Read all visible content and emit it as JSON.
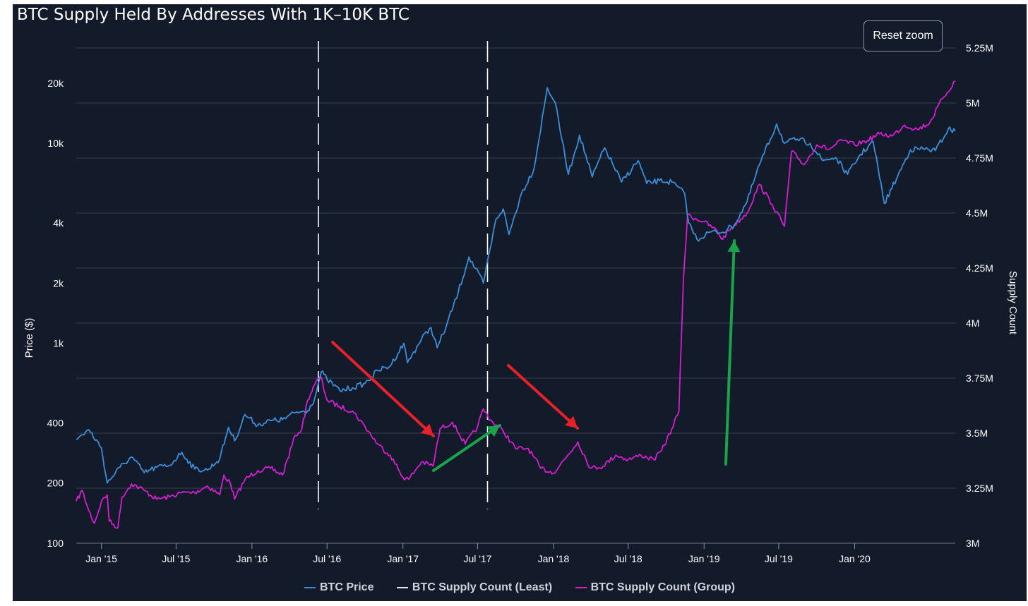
{
  "title": "BTC Supply Held By Addresses With 1K–10K BTC",
  "reset_zoom_label": "Reset zoom",
  "colors": {
    "background": "#131a2a",
    "price": "#3b8fd9",
    "supply_least": "#e8e8e8",
    "supply_group": "#d41ed0",
    "grid": "#3a4253",
    "red_arrow": "#e8202a",
    "green_arrow": "#1aa34a"
  },
  "chart_data": {
    "type": "line",
    "title": "BTC Supply Held By Addresses With 1K–10K BTC",
    "x_ticks": [
      "Jan '15",
      "Jul '15",
      "Jan '16",
      "Jul '16",
      "Jan '17",
      "Jul '17",
      "Jan '18",
      "Jul '18",
      "Jan '19",
      "Jul '19",
      "Jan '20"
    ],
    "x_range": [
      "2014-11-01",
      "2020-09-01"
    ],
    "y_left": {
      "label": "Price ($)",
      "scale": "log",
      "range": [
        100,
        30000
      ],
      "ticks": [
        "100",
        "200",
        "400",
        "1k",
        "2k",
        "4k",
        "10k",
        "20k"
      ]
    },
    "y_right": {
      "label": "Supply Count",
      "scale": "linear",
      "range": [
        3000000,
        5250000
      ],
      "ticks": [
        "3M",
        "3.25M",
        "3.5M",
        "3.75M",
        "4M",
        "4.25M",
        "4.5M",
        "4.75M",
        "5M",
        "5.25M"
      ]
    },
    "grid": true,
    "legend_position": "bottom-center",
    "series": [
      {
        "name": "BTC Price",
        "axis": "left",
        "points": [
          [
            "2014-11-01",
            330
          ],
          [
            "2014-12-01",
            370
          ],
          [
            "2015-01-01",
            300
          ],
          [
            "2015-01-15",
            200
          ],
          [
            "2015-02-15",
            240
          ],
          [
            "2015-03-15",
            270
          ],
          [
            "2015-04-15",
            225
          ],
          [
            "2015-05-15",
            240
          ],
          [
            "2015-06-15",
            245
          ],
          [
            "2015-07-15",
            285
          ],
          [
            "2015-08-15",
            235
          ],
          [
            "2015-09-15",
            232
          ],
          [
            "2015-10-15",
            265
          ],
          [
            "2015-11-05",
            380
          ],
          [
            "2015-11-20",
            325
          ],
          [
            "2015-12-15",
            440
          ],
          [
            "2016-01-15",
            390
          ],
          [
            "2016-02-15",
            410
          ],
          [
            "2016-03-15",
            415
          ],
          [
            "2016-04-15",
            450
          ],
          [
            "2016-05-15",
            460
          ],
          [
            "2016-06-01",
            530
          ],
          [
            "2016-06-17",
            720
          ],
          [
            "2016-07-01",
            660
          ],
          [
            "2016-08-01",
            580
          ],
          [
            "2016-09-01",
            600
          ],
          [
            "2016-10-01",
            630
          ],
          [
            "2016-11-01",
            730
          ],
          [
            "2016-12-01",
            770
          ],
          [
            "2017-01-03",
            1000
          ],
          [
            "2017-01-12",
            800
          ],
          [
            "2017-02-15",
            1050
          ],
          [
            "2017-03-10",
            1200
          ],
          [
            "2017-03-25",
            950
          ],
          [
            "2017-04-15",
            1200
          ],
          [
            "2017-05-15",
            1800
          ],
          [
            "2017-06-10",
            2700
          ],
          [
            "2017-07-15",
            2000
          ],
          [
            "2017-08-15",
            4200
          ],
          [
            "2017-09-01",
            4700
          ],
          [
            "2017-09-15",
            3500
          ],
          [
            "2017-10-15",
            5600
          ],
          [
            "2017-11-15",
            7500
          ],
          [
            "2017-12-17",
            19000
          ],
          [
            "2018-01-05",
            16000
          ],
          [
            "2018-02-06",
            7000
          ],
          [
            "2018-03-05",
            11000
          ],
          [
            "2018-04-05",
            6800
          ],
          [
            "2018-05-05",
            9500
          ],
          [
            "2018-06-15",
            6400
          ],
          [
            "2018-07-25",
            8200
          ],
          [
            "2018-08-15",
            6300
          ],
          [
            "2018-09-15",
            6500
          ],
          [
            "2018-10-15",
            6400
          ],
          [
            "2018-11-15",
            5600
          ],
          [
            "2018-11-25",
            4000
          ],
          [
            "2018-12-15",
            3300
          ],
          [
            "2019-01-15",
            3600
          ],
          [
            "2019-02-15",
            3600
          ],
          [
            "2019-03-15",
            3900
          ],
          [
            "2019-04-15",
            5100
          ],
          [
            "2019-05-15",
            7800
          ],
          [
            "2019-06-26",
            12500
          ],
          [
            "2019-07-15",
            10000
          ],
          [
            "2019-08-15",
            10500
          ],
          [
            "2019-09-15",
            10000
          ],
          [
            "2019-10-15",
            8200
          ],
          [
            "2019-11-15",
            8500
          ],
          [
            "2019-12-15",
            7000
          ],
          [
            "2020-01-15",
            8800
          ],
          [
            "2020-02-15",
            10200
          ],
          [
            "2020-03-13",
            5000
          ],
          [
            "2020-04-15",
            6900
          ],
          [
            "2020-05-15",
            9300
          ],
          [
            "2020-06-15",
            9400
          ],
          [
            "2020-07-15",
            9200
          ],
          [
            "2020-08-15",
            11800
          ],
          [
            "2020-09-01",
            11500
          ]
        ]
      },
      {
        "name": "BTC Supply Count (Least)",
        "axis": "right",
        "points": []
      },
      {
        "name": "BTC Supply Count (Group)",
        "axis": "right",
        "points": [
          [
            "2014-11-01",
            3190000
          ],
          [
            "2014-11-15",
            3240000
          ],
          [
            "2014-12-01",
            3150000
          ],
          [
            "2014-12-15",
            3090000
          ],
          [
            "2015-01-01",
            3190000
          ],
          [
            "2015-01-15",
            3220000
          ],
          [
            "2015-01-20",
            3100000
          ],
          [
            "2015-02-10",
            3070000
          ],
          [
            "2015-02-20",
            3210000
          ],
          [
            "2015-03-15",
            3270000
          ],
          [
            "2015-04-15",
            3240000
          ],
          [
            "2015-05-15",
            3200000
          ],
          [
            "2015-06-15",
            3210000
          ],
          [
            "2015-07-15",
            3230000
          ],
          [
            "2015-08-15",
            3230000
          ],
          [
            "2015-09-15",
            3260000
          ],
          [
            "2015-10-15",
            3220000
          ],
          [
            "2015-10-25",
            3310000
          ],
          [
            "2015-11-10",
            3270000
          ],
          [
            "2015-11-20",
            3200000
          ],
          [
            "2015-12-15",
            3290000
          ],
          [
            "2016-01-15",
            3330000
          ],
          [
            "2016-02-15",
            3340000
          ],
          [
            "2016-03-15",
            3310000
          ],
          [
            "2016-04-15",
            3490000
          ],
          [
            "2016-05-01",
            3520000
          ],
          [
            "2016-05-15",
            3650000
          ],
          [
            "2016-06-01",
            3720000
          ],
          [
            "2016-06-15",
            3760000
          ],
          [
            "2016-07-01",
            3650000
          ],
          [
            "2016-08-01",
            3620000
          ],
          [
            "2016-09-01",
            3600000
          ],
          [
            "2016-10-01",
            3530000
          ],
          [
            "2016-11-01",
            3450000
          ],
          [
            "2016-12-01",
            3400000
          ],
          [
            "2017-01-01",
            3300000
          ],
          [
            "2017-01-15",
            3290000
          ],
          [
            "2017-02-15",
            3370000
          ],
          [
            "2017-03-15",
            3350000
          ],
          [
            "2017-04-01",
            3520000
          ],
          [
            "2017-05-01",
            3550000
          ],
          [
            "2017-06-01",
            3450000
          ],
          [
            "2017-07-01",
            3530000
          ],
          [
            "2017-07-15",
            3610000
          ],
          [
            "2017-08-01",
            3560000
          ],
          [
            "2017-09-01",
            3510000
          ],
          [
            "2017-10-01",
            3430000
          ],
          [
            "2017-11-01",
            3430000
          ],
          [
            "2017-12-01",
            3340000
          ],
          [
            "2018-01-01",
            3320000
          ],
          [
            "2018-02-01",
            3390000
          ],
          [
            "2018-03-01",
            3460000
          ],
          [
            "2018-04-01",
            3340000
          ],
          [
            "2018-05-01",
            3350000
          ],
          [
            "2018-06-01",
            3400000
          ],
          [
            "2018-07-01",
            3380000
          ],
          [
            "2018-08-01",
            3400000
          ],
          [
            "2018-09-01",
            3380000
          ],
          [
            "2018-09-20",
            3420000
          ],
          [
            "2018-10-15",
            3520000
          ],
          [
            "2018-11-01",
            3600000
          ],
          [
            "2018-11-12",
            4200000
          ],
          [
            "2018-11-22",
            4490000
          ],
          [
            "2019-01-01",
            4460000
          ],
          [
            "2019-02-01",
            4420000
          ],
          [
            "2019-02-15",
            4380000
          ],
          [
            "2019-03-01",
            4420000
          ],
          [
            "2019-04-15",
            4500000
          ],
          [
            "2019-05-15",
            4630000
          ],
          [
            "2019-06-15",
            4540000
          ],
          [
            "2019-07-15",
            4440000
          ],
          [
            "2019-08-01",
            4780000
          ],
          [
            "2019-09-01",
            4720000
          ],
          [
            "2019-10-01",
            4810000
          ],
          [
            "2019-11-01",
            4790000
          ],
          [
            "2019-12-01",
            4830000
          ],
          [
            "2020-01-01",
            4810000
          ],
          [
            "2020-02-01",
            4830000
          ],
          [
            "2020-03-01",
            4860000
          ],
          [
            "2020-04-01",
            4850000
          ],
          [
            "2020-05-01",
            4900000
          ],
          [
            "2020-06-01",
            4880000
          ],
          [
            "2020-07-01",
            4910000
          ],
          [
            "2020-08-01",
            5020000
          ],
          [
            "2020-09-01",
            5100000
          ]
        ]
      }
    ]
  }
}
